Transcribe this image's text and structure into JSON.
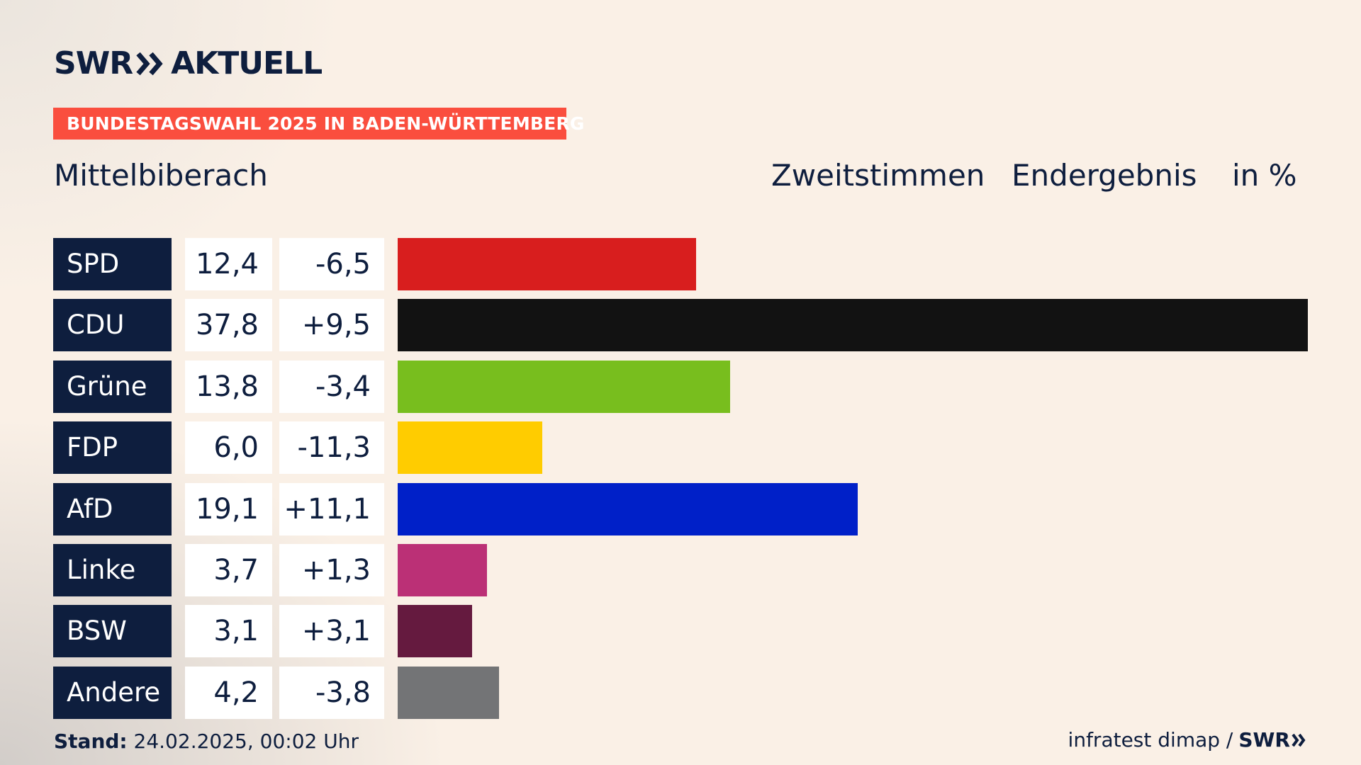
{
  "brand": {
    "logo_left": "SWR",
    "logo_right": "AKTUELL",
    "footer_logo": "SWR"
  },
  "badge": "BUNDESTAGSWAHL 2025 IN BADEN-WÜRTTEMBERG",
  "place": "Mittelbiberach",
  "header": {
    "votes": "Zweitstimmen",
    "status": "Endergebnis",
    "unit": "in %"
  },
  "footer": {
    "stand_label": "Stand:",
    "stand_value": "24.02.2025, 00:02 Uhr",
    "source": "infratest dimap /"
  },
  "colors": {
    "navy": "#0e1e3e",
    "badge": "#fa4e3e"
  },
  "chart_data": {
    "type": "bar",
    "orientation": "horizontal",
    "categories": [
      "SPD",
      "CDU",
      "Grüne",
      "FDP",
      "AfD",
      "Linke",
      "BSW",
      "Andere"
    ],
    "values": [
      12.4,
      37.8,
      13.8,
      6.0,
      19.1,
      3.7,
      3.1,
      4.2
    ],
    "value_labels": [
      "12,4",
      "37,8",
      "13,8",
      "6,0",
      "19,1",
      "3,7",
      "3,1",
      "4,2"
    ],
    "diff_labels": [
      "-6,5",
      "+9,5",
      "-3,4",
      "-11,3",
      "+11,1",
      "+1,3",
      "+3,1",
      "-3,8"
    ],
    "colors": [
      "#d81e1e",
      "#121212",
      "#78be1e",
      "#ffcc00",
      "#0020c8",
      "#bb3076",
      "#651a3f",
      "#737476"
    ],
    "xlim": [
      0,
      37.8
    ]
  }
}
